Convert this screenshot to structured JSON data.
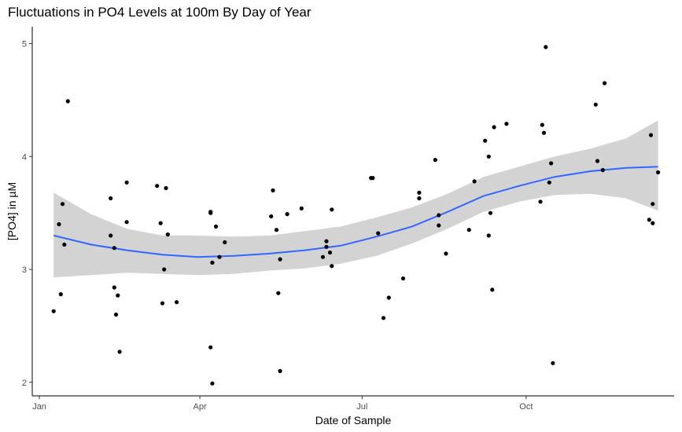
{
  "chart_data": {
    "type": "scatter",
    "title": "Fluctuations in PO4 Levels at 100m By Day of Year",
    "xlabel": "Date of Sample",
    "ylabel": "[PO4] in µM",
    "x_unit": "day of year",
    "xlim": [
      -3,
      357
    ],
    "ylim": [
      1.88,
      5.15
    ],
    "x_ticks": [
      {
        "label": "Jan",
        "value": 1
      },
      {
        "label": "Apr",
        "value": 91
      },
      {
        "label": "Jul",
        "value": 182
      },
      {
        "label": "Oct",
        "value": 274
      }
    ],
    "y_ticks": [
      2,
      3,
      4,
      5
    ],
    "grid": false,
    "colors": {
      "points": "#000000",
      "smooth_line": "#3366ff",
      "confidence_band": "#d3d3d3",
      "axis": "#000000",
      "tick_label": "#4d4d4d"
    },
    "points": [
      {
        "x": 9,
        "y": 2.63
      },
      {
        "x": 12,
        "y": 3.4
      },
      {
        "x": 13,
        "y": 2.78
      },
      {
        "x": 14,
        "y": 3.58
      },
      {
        "x": 15,
        "y": 3.22
      },
      {
        "x": 17,
        "y": 4.49
      },
      {
        "x": 41,
        "y": 3.63
      },
      {
        "x": 41,
        "y": 3.3
      },
      {
        "x": 43,
        "y": 3.19
      },
      {
        "x": 43,
        "y": 2.84
      },
      {
        "x": 44,
        "y": 2.6
      },
      {
        "x": 45,
        "y": 2.77
      },
      {
        "x": 46,
        "y": 2.27
      },
      {
        "x": 50,
        "y": 3.77
      },
      {
        "x": 50,
        "y": 3.42
      },
      {
        "x": 67,
        "y": 3.74
      },
      {
        "x": 69,
        "y": 3.41
      },
      {
        "x": 70,
        "y": 2.7
      },
      {
        "x": 71,
        "y": 3.0
      },
      {
        "x": 72,
        "y": 3.72
      },
      {
        "x": 73,
        "y": 3.31
      },
      {
        "x": 78,
        "y": 2.71
      },
      {
        "x": 97,
        "y": 3.51
      },
      {
        "x": 97,
        "y": 3.5
      },
      {
        "x": 97,
        "y": 2.31
      },
      {
        "x": 98,
        "y": 3.06
      },
      {
        "x": 98,
        "y": 1.99
      },
      {
        "x": 100,
        "y": 3.38
      },
      {
        "x": 102,
        "y": 3.11
      },
      {
        "x": 105,
        "y": 3.24
      },
      {
        "x": 131,
        "y": 3.47
      },
      {
        "x": 132,
        "y": 3.7
      },
      {
        "x": 134,
        "y": 3.35
      },
      {
        "x": 135,
        "y": 2.79
      },
      {
        "x": 136,
        "y": 3.09
      },
      {
        "x": 136,
        "y": 2.1
      },
      {
        "x": 140,
        "y": 3.49
      },
      {
        "x": 148,
        "y": 3.54
      },
      {
        "x": 160,
        "y": 3.11
      },
      {
        "x": 162,
        "y": 3.2
      },
      {
        "x": 162,
        "y": 3.25
      },
      {
        "x": 164,
        "y": 3.15
      },
      {
        "x": 165,
        "y": 3.03
      },
      {
        "x": 165,
        "y": 3.53
      },
      {
        "x": 187,
        "y": 3.81
      },
      {
        "x": 188,
        "y": 3.81
      },
      {
        "x": 191,
        "y": 3.32
      },
      {
        "x": 194,
        "y": 2.57
      },
      {
        "x": 197,
        "y": 2.75
      },
      {
        "x": 205,
        "y": 2.92
      },
      {
        "x": 214,
        "y": 3.63
      },
      {
        "x": 214,
        "y": 3.68
      },
      {
        "x": 223,
        "y": 3.97
      },
      {
        "x": 225,
        "y": 3.48
      },
      {
        "x": 225,
        "y": 3.39
      },
      {
        "x": 229,
        "y": 3.14
      },
      {
        "x": 242,
        "y": 3.35
      },
      {
        "x": 245,
        "y": 3.78
      },
      {
        "x": 251,
        "y": 4.14
      },
      {
        "x": 253,
        "y": 4.0
      },
      {
        "x": 253,
        "y": 3.3
      },
      {
        "x": 254,
        "y": 3.5
      },
      {
        "x": 255,
        "y": 2.82
      },
      {
        "x": 256,
        "y": 4.26
      },
      {
        "x": 263,
        "y": 4.29
      },
      {
        "x": 282,
        "y": 3.6
      },
      {
        "x": 283,
        "y": 4.28
      },
      {
        "x": 284,
        "y": 4.21
      },
      {
        "x": 285,
        "y": 4.97
      },
      {
        "x": 287,
        "y": 3.77
      },
      {
        "x": 288,
        "y": 3.94
      },
      {
        "x": 289,
        "y": 2.17
      },
      {
        "x": 313,
        "y": 4.46
      },
      {
        "x": 314,
        "y": 3.96
      },
      {
        "x": 317,
        "y": 3.88
      },
      {
        "x": 318,
        "y": 4.65
      },
      {
        "x": 343,
        "y": 3.44
      },
      {
        "x": 344,
        "y": 4.19
      },
      {
        "x": 345,
        "y": 3.58
      },
      {
        "x": 345,
        "y": 3.41
      },
      {
        "x": 348,
        "y": 3.86
      }
    ],
    "smooth": {
      "x": [
        9,
        30,
        50,
        70,
        90,
        110,
        130,
        150,
        170,
        190,
        210,
        230,
        250,
        270,
        290,
        310,
        330,
        348
      ],
      "y": [
        3.3,
        3.22,
        3.17,
        3.13,
        3.11,
        3.12,
        3.14,
        3.17,
        3.21,
        3.29,
        3.38,
        3.51,
        3.65,
        3.74,
        3.82,
        3.87,
        3.9,
        3.91
      ],
      "lower": [
        2.93,
        2.95,
        2.97,
        2.96,
        2.95,
        2.96,
        2.99,
        3.01,
        3.05,
        3.12,
        3.23,
        3.36,
        3.51,
        3.6,
        3.66,
        3.67,
        3.63,
        3.52
      ],
      "upper": [
        3.68,
        3.49,
        3.36,
        3.3,
        3.3,
        3.29,
        3.3,
        3.34,
        3.38,
        3.46,
        3.55,
        3.67,
        3.82,
        3.91,
        4.0,
        4.07,
        4.16,
        4.32
      ]
    }
  }
}
